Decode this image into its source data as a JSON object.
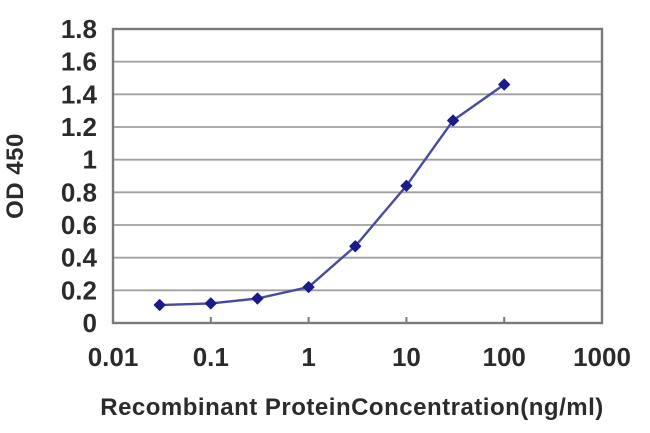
{
  "page": {
    "background": "#ffffff"
  },
  "chart_data": {
    "type": "line",
    "title": "",
    "xlabel": "Recombinant ProteinConcentration(ng/ml)",
    "ylabel": "OD 450",
    "x_scale": "log",
    "xlim": [
      0.01,
      1000
    ],
    "ylim": [
      0,
      1.8
    ],
    "x": [
      0.03,
      0.1,
      0.3,
      1,
      3,
      10,
      30,
      100
    ],
    "y": [
      0.11,
      0.12,
      0.15,
      0.22,
      0.47,
      0.84,
      1.24,
      1.46
    ],
    "x_ticks": [
      0.01,
      0.1,
      1,
      10,
      100,
      1000
    ],
    "x_tick_labels": [
      "0.01",
      "0.1",
      "1",
      "10",
      "100",
      "1000"
    ],
    "y_ticks": [
      0,
      0.2,
      0.4,
      0.6,
      0.8,
      1,
      1.2,
      1.4,
      1.6,
      1.8
    ],
    "y_tick_labels": [
      "0",
      "0.2",
      "0.4",
      "0.6",
      "0.8",
      "1",
      "1.2",
      "1.4",
      "1.6",
      "1.8"
    ],
    "grid": "horizontal",
    "legend": "none",
    "marker": "diamond",
    "colors": {
      "line": "#4a4a9e",
      "marker": "#1b1b8a",
      "grid": "#a0a0a0",
      "frame": "#7a7a7a",
      "text": "#2b2b2b",
      "background": "#ffffff"
    }
  }
}
